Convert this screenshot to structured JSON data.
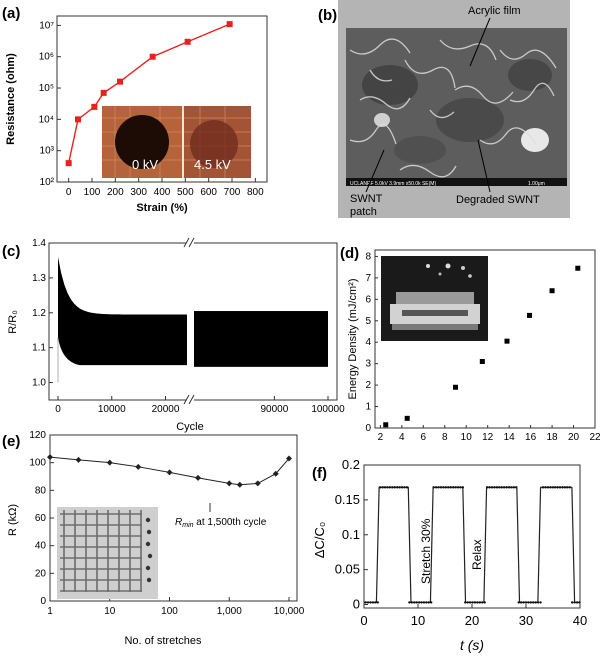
{
  "panels": {
    "a": {
      "label": "(a)"
    },
    "b": {
      "label": "(b)"
    },
    "c": {
      "label": "(c)"
    },
    "d": {
      "label": "(d)"
    },
    "e": {
      "label": "(e)"
    },
    "f": {
      "label": "(f)"
    }
  },
  "micrograph": {
    "acrylic_label": "Acrylic film",
    "swnt_patch_label": "SWNT patch",
    "degraded_label": "Degraded SWNT",
    "info_bar": "UCLANRF 5.0kV 3.9mm x50.0k SE(M)",
    "scale_text": "1.00μm"
  },
  "inset_a": {
    "left_text": "0 kV",
    "right_text": "4.5 kV"
  },
  "chart_data": [
    {
      "type": "line",
      "panel": "a",
      "xlabel": "Strain (%)",
      "ylabel": "Resistance (ohm)",
      "xlim": [
        -50,
        850
      ],
      "ylim_exp": [
        2,
        7.3
      ],
      "yscale": "log",
      "xticks": [
        0,
        100,
        200,
        300,
        400,
        500,
        600,
        700,
        800
      ],
      "yticks": [
        "10²",
        "10³",
        "10⁴",
        "10⁵",
        "10⁶",
        "10⁷"
      ],
      "x": [
        0,
        40,
        110,
        150,
        220,
        360,
        510,
        690
      ],
      "y": [
        400,
        10000,
        25000,
        70000,
        160000,
        1000000,
        3000000,
        11000000
      ],
      "color": "#e8211f"
    },
    {
      "type": "area",
      "panel": "c",
      "xlabel": "Cycle",
      "ylabel": "R/R₀",
      "ylim": [
        0.95,
        1.4
      ],
      "xticks_left": [
        0,
        10000,
        20000
      ],
      "xticks_right": [
        90000,
        100000
      ],
      "yticks": [
        "1.0",
        "1.1",
        "1.2",
        "1.3",
        "1.4"
      ],
      "segment_left": {
        "cycles": [
          0,
          24000
        ],
        "upper_end": 1.195,
        "lower": 1.05,
        "start_peak": 1.36
      },
      "segment_right": {
        "cycles": [
          75000,
          100000
        ],
        "upper": 1.205,
        "lower": 1.045
      }
    },
    {
      "type": "scatter",
      "panel": "d",
      "ylabel": "Energy Density (mJ/cm²)",
      "xlabel": "",
      "xlim": [
        1.5,
        22
      ],
      "ylim": [
        0,
        8.3
      ],
      "xticks": [
        2,
        4,
        6,
        8,
        10,
        12,
        14,
        16,
        18,
        20,
        22
      ],
      "yticks": [
        0,
        1,
        2,
        3,
        4,
        5,
        6,
        7,
        8
      ],
      "x": [
        2.5,
        4.5,
        9.0,
        11.5,
        13.8,
        15.9,
        18.0,
        20.4
      ],
      "y": [
        0.15,
        0.45,
        1.9,
        3.1,
        4.05,
        5.25,
        6.4,
        7.45
      ]
    },
    {
      "type": "line",
      "panel": "e",
      "xlabel": "No. of stretches",
      "ylabel": "R (kΩ)",
      "xscale": "log",
      "ylim": [
        0,
        120
      ],
      "xticks": [
        "1",
        "10",
        "100",
        "1,000",
        "10,000"
      ],
      "yticks": [
        0,
        20,
        40,
        60,
        80,
        100,
        120
      ],
      "x": [
        1,
        3,
        10,
        30,
        100,
        300,
        1000,
        1500,
        3000,
        6000,
        10000
      ],
      "y": [
        104,
        102,
        100,
        97,
        93,
        89,
        85,
        84,
        85,
        92,
        103
      ],
      "annotation": "R",
      "annotation_sub": "min",
      "annotation_rest": " at 1,500th cycle"
    },
    {
      "type": "line",
      "panel": "f",
      "xlabel": "t (s)",
      "ylabel": "ΔC/C₀",
      "xlim": [
        0,
        40
      ],
      "ylim": [
        -0.005,
        0.2
      ],
      "xticks": [
        0,
        10,
        20,
        30,
        40
      ],
      "yticks": [
        "0",
        "0.05",
        "0.1",
        "0.15",
        "0.2"
      ],
      "high": 0.168,
      "low": 0.003,
      "high_intervals": [
        [
          2.8,
          8.2
        ],
        [
          12.8,
          18.3
        ],
        [
          22.7,
          28.3
        ],
        [
          32.7,
          38.5
        ]
      ],
      "annotation_stretch": "Stretch 30%",
      "annotation_relax": "Relax"
    }
  ]
}
